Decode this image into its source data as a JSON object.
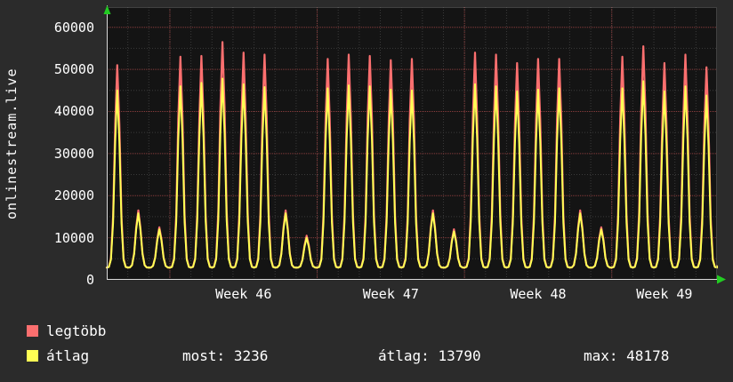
{
  "colors": {
    "background": "#2b2b2b",
    "text": "#ffffff"
  },
  "legend": {
    "series": [
      {
        "label": "legtöbb"
      },
      {
        "label": "átlag"
      }
    ],
    "stats": [
      {
        "label": "most:",
        "value": "3236"
      },
      {
        "label": "átlag:",
        "value": "13790"
      },
      {
        "label": "max:",
        "value": "48178"
      }
    ]
  },
  "chart_data": {
    "type": "line",
    "vertical_label": "onlinestream.live",
    "x_tick_labels": [
      "Week 46",
      "Week 47",
      "Week 48",
      "Week 49"
    ],
    "x_label_day_centers": [
      6.5,
      13.5,
      20.5,
      26.5
    ],
    "week_boundary_days": [
      3,
      10,
      17,
      24
    ],
    "y_ticks": [
      0,
      10000,
      20000,
      30000,
      40000,
      50000,
      60000
    ],
    "y_axis_max": 64800,
    "days": 29,
    "baseline_value": 2900,
    "end_value": 3236,
    "grid": {
      "major_color": "#8a3d3d",
      "minor_color": "#3a3a3a",
      "border_color": "#6e6e6e",
      "axis_color": "#d8d8d8",
      "arrow_color": "#22cc22",
      "plot_bg": "#141414"
    },
    "series": [
      {
        "name": "legtöbb",
        "color": "#fb6f6f",
        "day_peaks": [
          51000,
          16500,
          12500,
          53000,
          53200,
          56500,
          54000,
          53500,
          16500,
          10500,
          52500,
          53500,
          53200,
          52200,
          52500,
          16500,
          12000,
          54000,
          53500,
          51500,
          52500,
          52500,
          16500,
          12500,
          53000,
          55500,
          51500,
          53500,
          50500
        ]
      },
      {
        "name": "átlag",
        "color": "#ffff54",
        "day_peaks": [
          45000,
          15800,
          12000,
          46000,
          46800,
          47800,
          46500,
          45800,
          15800,
          10000,
          45500,
          46200,
          46000,
          45200,
          45000,
          15800,
          11500,
          46500,
          46000,
          44800,
          45200,
          45500,
          15800,
          12000,
          45500,
          47200,
          44800,
          46000,
          43800
        ]
      }
    ],
    "stats": {
      "most": 3236,
      "atlag": 13790,
      "max": 48178
    }
  }
}
